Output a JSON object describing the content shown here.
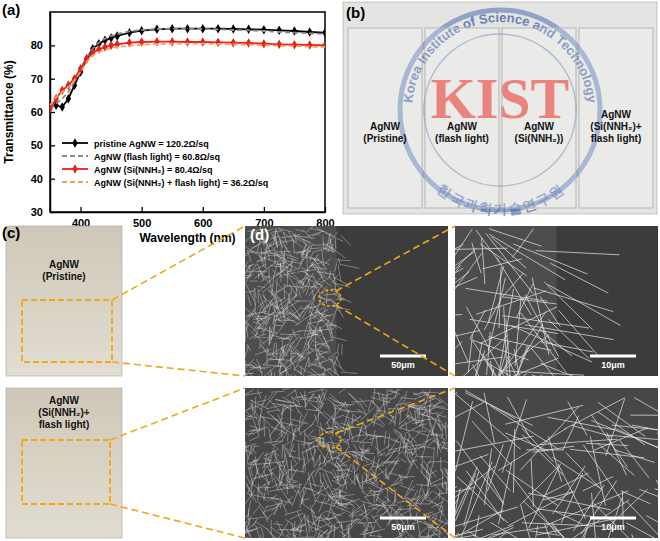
{
  "figure": {
    "panel_labels": [
      "(a)",
      "(b)",
      "(c)",
      "(d)"
    ],
    "photo_b": {
      "logo_text": "Korea Institute of Science and Technology",
      "logo_letters": "KIST",
      "logo_korean": "한국과학기술연구원",
      "samples": [
        [
          "AgNW",
          "(Pristine)"
        ],
        [
          "AgNW",
          "(flash light)"
        ],
        [
          "AgNW",
          "(Si(NNH₂))"
        ],
        [
          "AgNW",
          "(Si(NNH₂)+",
          "flash light)"
        ]
      ]
    },
    "photo_c": {
      "samples": [
        [
          "AgNW",
          "(Pristine)"
        ],
        [
          "AgNW",
          "(Si(NNH₂)+",
          "flash light)"
        ]
      ]
    },
    "sem_d": {
      "scale_bars": [
        "50μm",
        "10μm",
        "50μm",
        "10μm"
      ]
    }
  },
  "chart_data": {
    "type": "line",
    "x_label": "Wavelength (nm)",
    "y_label": "Transmittance (%)",
    "x": [
      350,
      360,
      370,
      380,
      390,
      400,
      410,
      420,
      430,
      440,
      450,
      460,
      480,
      500,
      525,
      550,
      575,
      600,
      625,
      650,
      675,
      700,
      725,
      750,
      775,
      800
    ],
    "xlim": [
      350,
      800
    ],
    "xticks": [
      400,
      500,
      600,
      700,
      800
    ],
    "ylim": [
      30,
      90
    ],
    "yticks": [
      30,
      40,
      50,
      60,
      70,
      80
    ],
    "legend": "lower left",
    "series": [
      {
        "name": "pristine AgNW = 120.2Ω/sq",
        "color": "#000000",
        "marker": "diamond",
        "line_style": "solid",
        "values": [
          61.5,
          62,
          61.5,
          64,
          68,
          72,
          76,
          79,
          80.5,
          81.5,
          82.2,
          82.8,
          83.8,
          84.4,
          84.8,
          85,
          85,
          85,
          85,
          84.9,
          84.8,
          84.7,
          84.5,
          84.3,
          84,
          83.8
        ]
      },
      {
        "name": "AgNW (flash light) = 60.8Ω/sq",
        "color": "#8c8c8c",
        "line_style": "dashed",
        "values": [
          61,
          62.5,
          64,
          66,
          69,
          73,
          76.5,
          79,
          80.8,
          82,
          82.8,
          83.4,
          84.2,
          84.6,
          84.9,
          85,
          85,
          84.9,
          84.8,
          84.6,
          84.5,
          84.3,
          84,
          83.8,
          83.6,
          83.4
        ]
      },
      {
        "name": "AgNW (Si(NNH₂) = 80.4Ω/sq",
        "color": "#e8211b",
        "marker": "diamond",
        "line_style": "solid",
        "values": [
          61,
          64,
          66.5,
          68,
          70,
          73,
          75.8,
          77.8,
          78.8,
          79.5,
          80,
          80.3,
          80.8,
          81,
          81.1,
          81.1,
          81,
          81,
          80.9,
          80.8,
          80.7,
          80.5,
          80.3,
          80.2,
          80.1,
          80
        ]
      },
      {
        "name": "AgNW (Si(NNH₂) + flash light) = 36.2Ω/sq",
        "color": "#f5a05a",
        "line_style": "dashed",
        "values": [
          62,
          64.5,
          66,
          67.5,
          69.5,
          72,
          75,
          77,
          78,
          78.6,
          79.2,
          79.5,
          79.9,
          80.2,
          80.4,
          80.5,
          80.5,
          80.5,
          80.4,
          80.3,
          80.2,
          80,
          79.9,
          79.8,
          79.6,
          79.5
        ]
      }
    ]
  }
}
